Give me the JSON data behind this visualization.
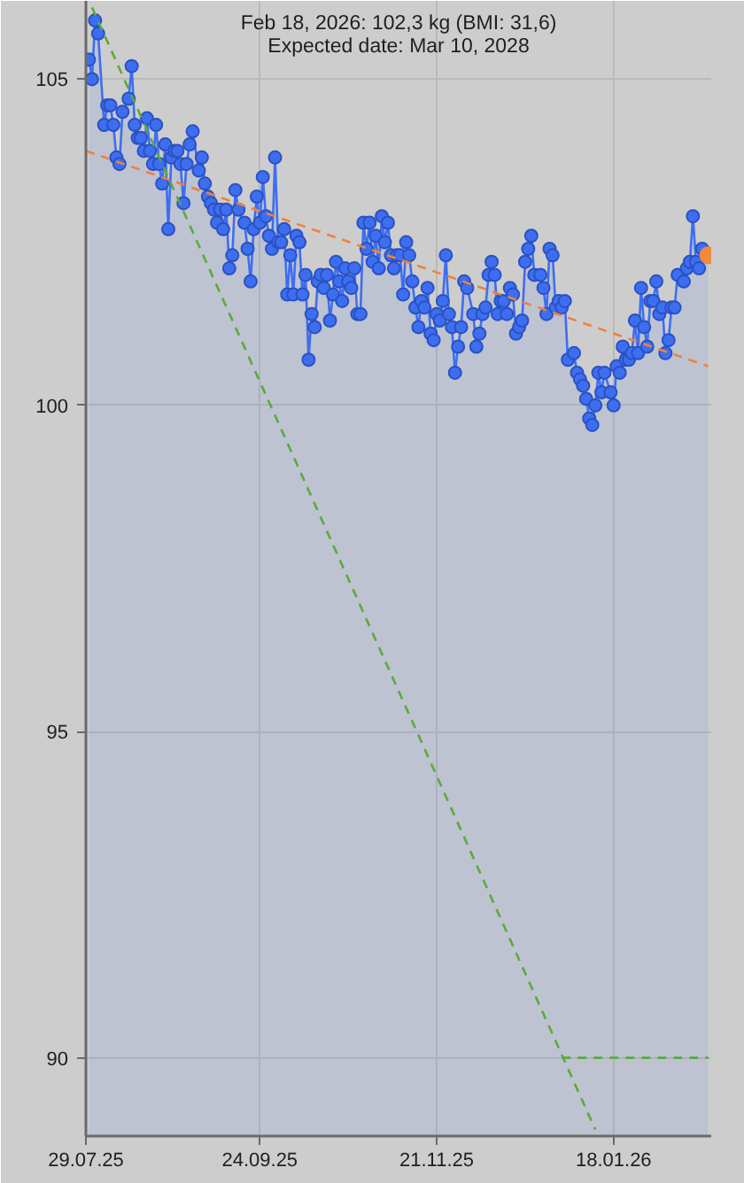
{
  "chart_data": {
    "type": "area",
    "title": "Feb 18, 2026: 102,3 kg (BMI: 31,6)",
    "subtitle": "Expected date: Mar 10, 2028",
    "xlim": [
      "2025-07-29",
      "2026-02-19"
    ],
    "xticks": [
      {
        "value": "2025-07-29",
        "label": "29.07.25"
      },
      {
        "value": "2025-09-24",
        "label": "24.09.25"
      },
      {
        "value": "2025-11-21",
        "label": "21.11.25"
      },
      {
        "value": "2026-01-18",
        "label": "18.01.26"
      }
    ],
    "ylim": [
      88.8,
      106.2
    ],
    "yticks": [
      90,
      95,
      100,
      105
    ],
    "grid": true,
    "x": [
      "2025-07-30",
      "2025-07-31",
      "2025-08-01",
      "2025-08-02",
      "2025-08-04",
      "2025-08-05",
      "2025-08-06",
      "2025-08-07",
      "2025-08-08",
      "2025-08-09",
      "2025-08-10",
      "2025-08-12",
      "2025-08-13",
      "2025-08-14",
      "2025-08-15",
      "2025-08-16",
      "2025-08-17",
      "2025-08-18",
      "2025-08-19",
      "2025-08-20",
      "2025-08-21",
      "2025-08-22",
      "2025-08-23",
      "2025-08-24",
      "2025-08-25",
      "2025-08-26",
      "2025-08-27",
      "2025-08-28",
      "2025-08-29",
      "2025-08-30",
      "2025-08-31",
      "2025-09-01",
      "2025-09-02",
      "2025-09-04",
      "2025-09-05",
      "2025-09-06",
      "2025-09-07",
      "2025-09-08",
      "2025-09-09",
      "2025-09-10",
      "2025-09-11",
      "2025-09-12",
      "2025-09-13",
      "2025-09-14",
      "2025-09-15",
      "2025-09-16",
      "2025-09-17",
      "2025-09-19",
      "2025-09-20",
      "2025-09-21",
      "2025-09-22",
      "2025-09-23",
      "2025-09-24",
      "2025-09-25",
      "2025-09-26",
      "2025-09-27",
      "2025-09-28",
      "2025-09-29",
      "2025-09-30",
      "2025-10-01",
      "2025-10-02",
      "2025-10-03",
      "2025-10-04",
      "2025-10-05",
      "2025-10-06",
      "2025-10-07",
      "2025-10-08",
      "2025-10-09",
      "2025-10-10",
      "2025-10-11",
      "2025-10-12",
      "2025-10-13",
      "2025-10-14",
      "2025-10-15",
      "2025-10-16",
      "2025-10-17",
      "2025-10-18",
      "2025-10-19",
      "2025-10-20",
      "2025-10-21",
      "2025-10-22",
      "2025-10-23",
      "2025-10-24",
      "2025-10-25",
      "2025-10-26",
      "2025-10-27",
      "2025-10-28",
      "2025-10-29",
      "2025-10-30",
      "2025-10-31",
      "2025-11-01",
      "2025-11-02",
      "2025-11-03",
      "2025-11-04",
      "2025-11-05",
      "2025-11-06",
      "2025-11-07",
      "2025-11-08",
      "2025-11-09",
      "2025-11-10",
      "2025-11-11",
      "2025-11-12",
      "2025-11-13",
      "2025-11-14",
      "2025-11-15",
      "2025-11-16",
      "2025-11-17",
      "2025-11-18",
      "2025-11-19",
      "2025-11-20",
      "2025-11-21",
      "2025-11-22",
      "2025-11-23",
      "2025-11-24",
      "2025-11-25",
      "2025-11-26",
      "2025-11-27",
      "2025-11-28",
      "2025-11-29",
      "2025-11-30",
      "2025-12-01",
      "2025-12-03",
      "2025-12-04",
      "2025-12-05",
      "2025-12-06",
      "2025-12-07",
      "2025-12-08",
      "2025-12-09",
      "2025-12-10",
      "2025-12-11",
      "2025-12-12",
      "2025-12-13",
      "2025-12-14",
      "2025-12-15",
      "2025-12-16",
      "2025-12-17",
      "2025-12-18",
      "2025-12-19",
      "2025-12-20",
      "2025-12-21",
      "2025-12-22",
      "2025-12-23",
      "2025-12-25",
      "2025-12-26",
      "2025-12-27",
      "2025-12-28",
      "2025-12-29",
      "2025-12-30",
      "2025-12-31",
      "2026-01-01",
      "2026-01-02",
      "2026-01-03",
      "2026-01-05",
      "2026-01-06",
      "2026-01-07",
      "2026-01-08",
      "2026-01-09",
      "2026-01-10",
      "2026-01-11",
      "2026-01-12",
      "2026-01-13",
      "2026-01-14",
      "2026-01-15",
      "2026-01-17",
      "2026-01-18",
      "2026-01-19",
      "2026-01-20",
      "2026-01-21",
      "2026-01-22",
      "2026-01-23",
      "2026-01-24",
      "2026-01-25",
      "2026-01-26",
      "2026-01-27",
      "2026-01-28",
      "2026-01-29",
      "2026-01-30",
      "2026-01-31",
      "2026-02-01",
      "2026-02-02",
      "2026-02-03",
      "2026-02-04",
      "2026-02-05",
      "2026-02-06",
      "2026-02-07",
      "2026-02-08",
      "2026-02-10",
      "2026-02-11",
      "2026-02-12",
      "2026-02-13",
      "2026-02-14",
      "2026-02-15",
      "2026-02-16",
      "2026-02-18"
    ],
    "series": [
      {
        "color": "#3d6ef2",
        "marker": "circle",
        "line_style": "solid",
        "values": [
          105.3,
          105.0,
          105.9,
          105.7,
          104.3,
          104.6,
          104.6,
          104.3,
          103.8,
          103.7,
          104.5,
          104.7,
          105.2,
          104.3,
          104.1,
          104.1,
          103.9,
          104.4,
          103.9,
          103.7,
          104.3,
          103.7,
          103.4,
          104.0,
          102.7,
          103.8,
          103.9,
          103.9,
          103.7,
          103.1,
          103.7,
          104.0,
          104.2,
          103.6,
          103.8,
          103.4,
          103.2,
          103.1,
          103.0,
          102.8,
          103.0,
          102.7,
          103.0,
          102.1,
          102.3,
          103.3,
          103.0,
          102.8,
          102.4,
          101.9,
          102.7,
          103.2,
          102.8,
          103.5,
          102.9,
          102.6,
          102.4,
          103.8,
          102.5,
          102.5,
          102.7,
          101.7,
          102.3,
          101.7,
          102.6,
          102.5,
          101.7,
          102.0,
          100.7,
          101.4,
          101.2,
          101.9,
          102.0,
          101.8,
          102.0,
          101.3,
          101.7,
          102.2,
          101.9,
          101.6,
          102.1,
          101.9,
          101.8,
          102.1,
          101.4,
          101.4,
          102.8,
          102.4,
          102.8,
          102.2,
          102.6,
          102.1,
          102.9,
          102.5,
          102.8,
          102.3,
          102.1,
          102.3,
          102.3,
          101.7,
          102.5,
          102.3,
          101.9,
          101.5,
          101.2,
          101.6,
          101.5,
          101.8,
          101.1,
          101.0,
          101.4,
          101.3,
          101.6,
          102.3,
          101.4,
          101.2,
          100.5,
          100.9,
          101.2,
          101.9,
          101.8,
          101.4,
          100.9,
          101.1,
          101.4,
          101.5,
          102.0,
          102.2,
          102.0,
          101.4,
          101.6,
          101.6,
          101.4,
          101.8,
          101.7,
          101.1,
          101.2,
          101.3,
          102.2,
          102.4,
          102.6,
          102.0,
          102.0,
          101.8,
          101.4,
          102.4,
          102.3,
          101.5,
          101.6,
          101.5,
          101.6,
          100.7,
          100.8,
          100.5,
          100.4,
          100.3,
          100.1,
          99.8,
          99.7,
          100.0,
          100.5,
          100.2,
          100.5,
          100.2,
          100.0,
          100.6,
          100.5,
          100.9,
          100.7,
          100.7,
          100.8,
          101.3,
          100.8,
          101.8,
          101.2,
          100.9,
          101.6,
          101.6,
          101.9,
          101.4,
          101.5,
          100.8,
          101.0,
          101.5,
          101.5,
          102.0,
          101.9,
          102.1,
          102.2,
          102.9,
          102.2,
          102.1,
          102.4,
          102.3
        ]
      },
      {
        "type": "line",
        "color": "#f0803c",
        "marker": "none",
        "line_style": "dashed",
        "x": [
          "2025-07-29",
          "2026-02-18"
        ],
        "values": [
          103.9,
          100.6
        ]
      },
      {
        "type": "line",
        "color": "#5aab3a",
        "marker": "none",
        "line_style": "dashed",
        "x": [
          "2025-07-31",
          "2026-01-12"
        ],
        "values": [
          106.1,
          88.9
        ]
      },
      {
        "type": "line",
        "color": "#5aab3a",
        "marker": "none",
        "line_style": "dashed",
        "x": [
          "2026-01-01",
          "2026-02-18"
        ],
        "values": [
          90,
          90
        ]
      },
      {
        "type": "scatter",
        "color": "#f28a3c",
        "marker": "circle",
        "x": [
          "2026-02-18"
        ],
        "values": [
          102.3
        ]
      }
    ]
  }
}
